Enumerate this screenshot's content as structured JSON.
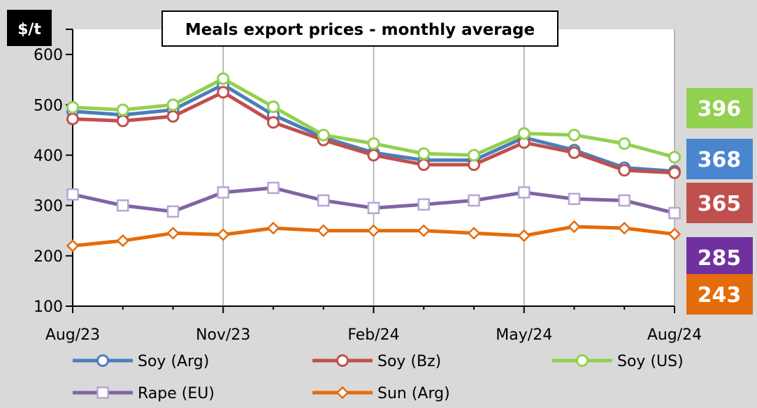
{
  "chart_data": {
    "type": "line",
    "title": "Meals export prices - monthly average",
    "unit_label": "$/t",
    "x": [
      "Aug/23",
      "Sep/23",
      "Oct/23",
      "Nov/23",
      "Dec/23",
      "Jan/24",
      "Feb/24",
      "Mar/24",
      "Apr/24",
      "May/24",
      "Jun/24",
      "Jul/24",
      "Aug/24"
    ],
    "x_tick_labels": [
      {
        "index": 0,
        "label": "Aug/23"
      },
      {
        "index": 3,
        "label": "Nov/23"
      },
      {
        "index": 6,
        "label": "Feb/24"
      },
      {
        "index": 9,
        "label": "May/24"
      },
      {
        "index": 12,
        "label": "Aug/24"
      }
    ],
    "ylim": [
      100,
      650
    ],
    "yticks": [
      100,
      200,
      300,
      400,
      500,
      600
    ],
    "grid": "vertical",
    "legend_position": "bottom",
    "series": [
      {
        "name": "Soy (Arg)",
        "color": "#4a7ebb",
        "marker": "circle",
        "values": [
          487,
          480,
          490,
          540,
          480,
          435,
          405,
          390,
          390,
          435,
          410,
          375,
          368
        ]
      },
      {
        "name": "Soy (Bz)",
        "color": "#c0504d",
        "marker": "circle",
        "values": [
          472,
          468,
          477,
          525,
          465,
          430,
          400,
          381,
          381,
          425,
          405,
          370,
          365
        ]
      },
      {
        "name": "Soy (US)",
        "color": "#92d050",
        "marker": "circle",
        "values": [
          495,
          490,
          500,
          552,
          496,
          440,
          423,
          403,
          400,
          443,
          440,
          423,
          396
        ]
      },
      {
        "name": "Rape (EU)",
        "color": "#8064a2",
        "marker": "square",
        "values": [
          322,
          300,
          288,
          326,
          335,
          310,
          295,
          302,
          310,
          326,
          313,
          310,
          285
        ]
      },
      {
        "name": "Sun (Arg)",
        "color": "#e46c0a",
        "marker": "diamond",
        "values": [
          220,
          230,
          245,
          242,
          255,
          250,
          250,
          250,
          245,
          240,
          258,
          255,
          243
        ]
      }
    ],
    "end_badges": [
      {
        "label": "396",
        "color": "#92d050"
      },
      {
        "label": "368",
        "color": "#4a86cf"
      },
      {
        "label": "365",
        "color": "#c0504d"
      },
      {
        "label": "285",
        "color": "#7030a0"
      },
      {
        "label": "243",
        "color": "#e46c0a"
      }
    ]
  }
}
